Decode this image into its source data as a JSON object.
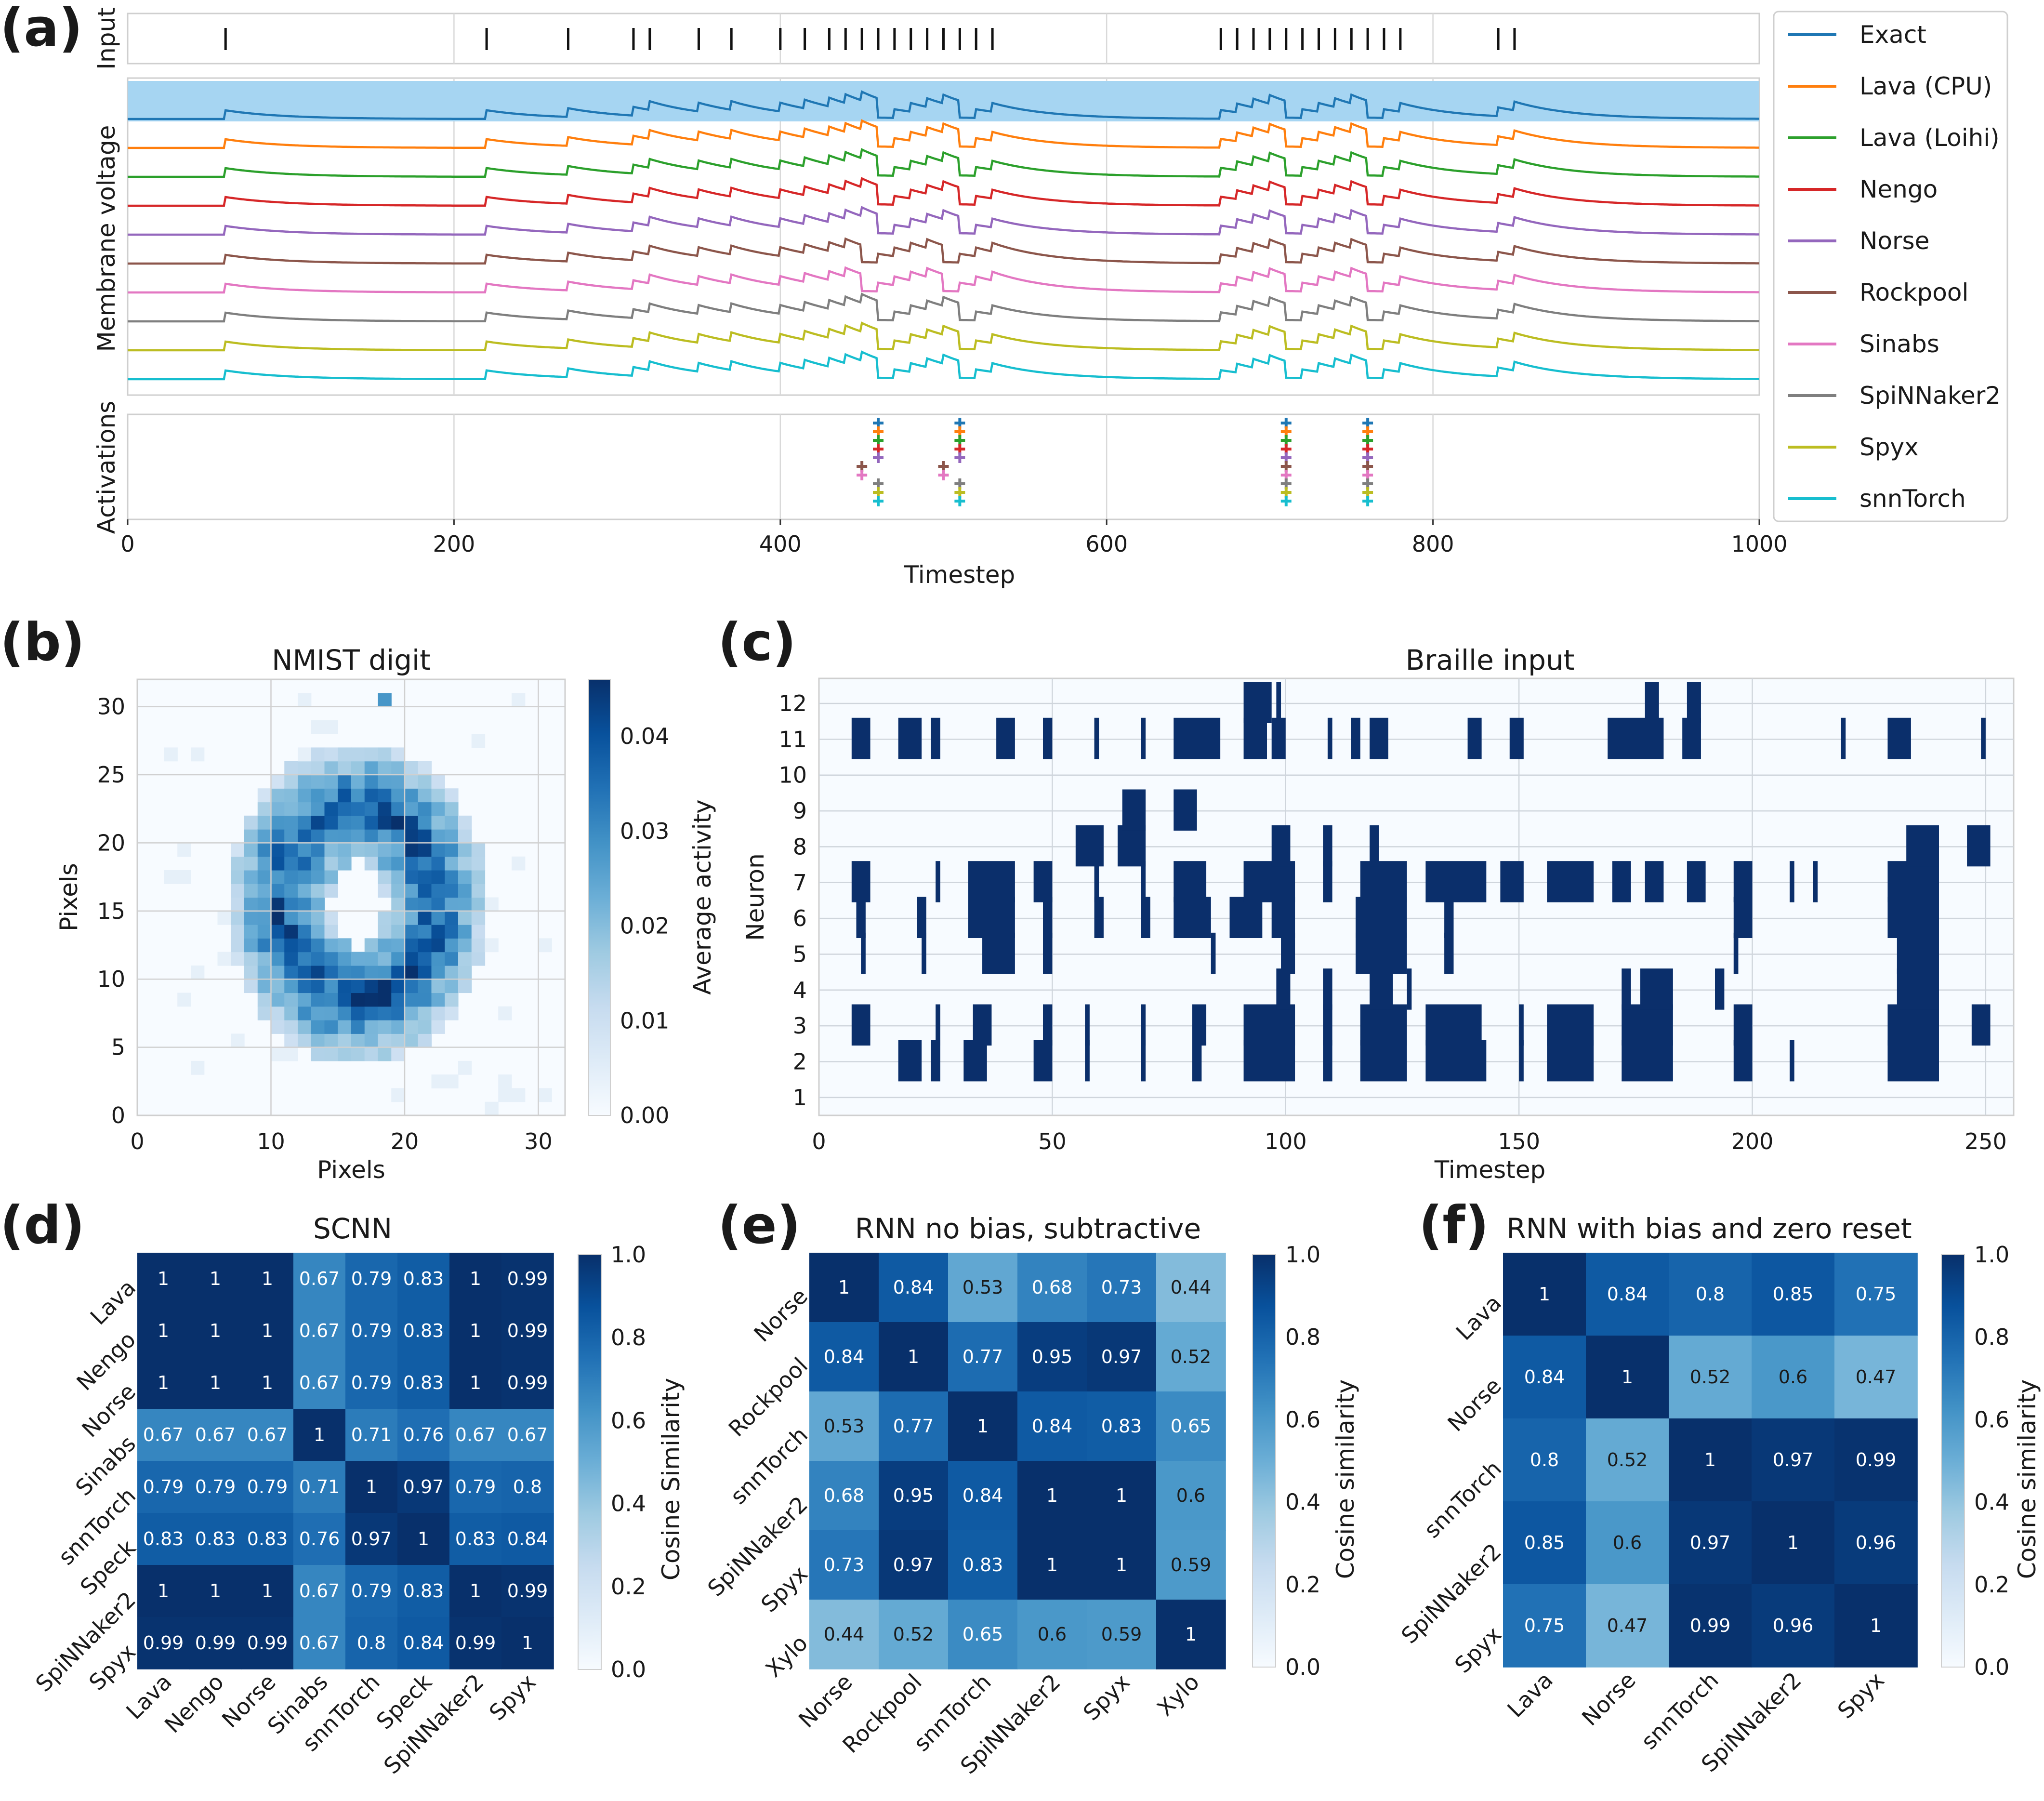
{
  "colors": {
    "Exact": "#1f77b4",
    "Lava (CPU)": "#ff7f0e",
    "Lava (Loihi)": "#2ca02c",
    "Nengo": "#d62728",
    "Norse": "#9467bd",
    "Rockpool": "#8c564b",
    "Sinabs": "#e377c2",
    "SpiNNaker2": "#7f7f7f",
    "Spyx": "#bcbd22",
    "snnTorch": "#17becf",
    "highlight": "#a6d5f2",
    "raster": "#0b2f6b"
  },
  "panel_labels": {
    "a": "(a)",
    "b": "(b)",
    "c": "(c)",
    "d": "(d)",
    "e": "(e)",
    "f": "(f)"
  },
  "chart_data": [
    {
      "id": "a",
      "type": "line",
      "xlabel": "Timestep",
      "x_ticks": [
        0,
        200,
        400,
        600,
        800,
        1000
      ],
      "xlim": [
        0,
        1000
      ],
      "input_label": "Input",
      "voltage_label": "Membrane voltage",
      "activations_label": "Activations",
      "input_spikes": [
        60,
        220,
        270,
        310,
        320,
        350,
        370,
        400,
        415,
        430,
        440,
        450,
        460,
        470,
        480,
        490,
        500,
        510,
        520,
        530,
        670,
        680,
        690,
        700,
        710,
        720,
        730,
        740,
        750,
        760,
        770,
        780,
        840,
        850
      ],
      "series": [
        "Exact",
        "Lava (CPU)",
        "Lava (Loihi)",
        "Nengo",
        "Norse",
        "Rockpool",
        "Sinabs",
        "SpiNNaker2",
        "Spyx",
        "snnTorch"
      ],
      "activations": {
        "Exact": [
          460,
          510,
          710,
          760
        ],
        "Lava (CPU)": [
          460,
          510,
          710,
          760
        ],
        "Lava (Loihi)": [
          460,
          510,
          710,
          760
        ],
        "Nengo": [
          460,
          510,
          710,
          760
        ],
        "Norse": [
          460,
          510,
          710,
          760
        ],
        "Rockpool": [
          450,
          500,
          710,
          760
        ],
        "Sinabs": [
          450,
          500,
          710,
          760
        ],
        "SpiNNaker2": [
          460,
          510,
          710,
          760
        ],
        "Spyx": [
          460,
          510,
          710,
          760
        ],
        "snnTorch": [
          460,
          510,
          710,
          760
        ]
      }
    },
    {
      "id": "b",
      "type": "heatmap",
      "title": "NMIST digit",
      "xlabel": "Pixels",
      "ylabel": "Pixels",
      "x_ticks": [
        0,
        10,
        20,
        30
      ],
      "y_ticks": [
        0,
        5,
        10,
        15,
        20,
        25,
        30
      ],
      "xlim": [
        0,
        32
      ],
      "ylim": [
        0,
        32
      ],
      "colorbar_label": "Average activity",
      "colorbar_ticks": [
        "0.00",
        "0.01",
        "0.02",
        "0.03",
        "0.04"
      ],
      "vmax": 0.046,
      "ring": {
        "cx": 16.5,
        "cy": 15.5,
        "rx_outer": 9.2,
        "ry_outer": 11.2,
        "rx_inner": 2.2,
        "ry_inner": 3.5,
        "peak": 0.04
      }
    },
    {
      "id": "c",
      "type": "scatter",
      "title": "Braille input",
      "xlabel": "Timestep",
      "ylabel": "Neuron",
      "x_ticks": [
        0,
        50,
        100,
        150,
        200,
        250
      ],
      "y_ticks": [
        1,
        2,
        3,
        4,
        5,
        6,
        7,
        8,
        9,
        10,
        11,
        12
      ],
      "xlim": [
        0,
        256
      ],
      "ylim": [
        0.5,
        12.7
      ],
      "events": {
        "12": [
          [
            91,
            97
          ],
          [
            98,
            99
          ],
          [
            177,
            180
          ],
          [
            186,
            189
          ]
        ],
        "11": [
          [
            7,
            11
          ],
          [
            17,
            22
          ],
          [
            24,
            26
          ],
          [
            38,
            42
          ],
          [
            48,
            50
          ],
          [
            59,
            60
          ],
          [
            69,
            70
          ],
          [
            76,
            86
          ],
          [
            91,
            96
          ],
          [
            97,
            100
          ],
          [
            109,
            110
          ],
          [
            114,
            116
          ],
          [
            118,
            122
          ],
          [
            139,
            142
          ],
          [
            148,
            151
          ],
          [
            169,
            181
          ],
          [
            185,
            189
          ],
          [
            219,
            220
          ],
          [
            229,
            234
          ],
          [
            249,
            250
          ]
        ],
        "9": [
          [
            65,
            70
          ],
          [
            76,
            81
          ]
        ],
        "8": [
          [
            55,
            61
          ],
          [
            64,
            70
          ],
          [
            97,
            101
          ],
          [
            108,
            110
          ],
          [
            118,
            120
          ],
          [
            233,
            240
          ],
          [
            246,
            251
          ]
        ],
        "7": [
          [
            7,
            11
          ],
          [
            25,
            26
          ],
          [
            32,
            42
          ],
          [
            46,
            50
          ],
          [
            59,
            60
          ],
          [
            69,
            70
          ],
          [
            76,
            83
          ],
          [
            91,
            102
          ],
          [
            108,
            110
          ],
          [
            116,
            126
          ],
          [
            130,
            143
          ],
          [
            146,
            151
          ],
          [
            156,
            166
          ],
          [
            170,
            174
          ],
          [
            177,
            181
          ],
          [
            186,
            190
          ],
          [
            196,
            200
          ],
          [
            208,
            209
          ],
          [
            213,
            214
          ],
          [
            229,
            240
          ]
        ],
        "6": [
          [
            8,
            10
          ],
          [
            21,
            23
          ],
          [
            32,
            42
          ],
          [
            48,
            50
          ],
          [
            59,
            61
          ],
          [
            69,
            71
          ],
          [
            76,
            84
          ],
          [
            88,
            95
          ],
          [
            97,
            102
          ],
          [
            115,
            126
          ],
          [
            134,
            136
          ],
          [
            196,
            200
          ],
          [
            229,
            240
          ]
        ],
        "5": [
          [
            9,
            10
          ],
          [
            22,
            23
          ],
          [
            35,
            42
          ],
          [
            48,
            50
          ],
          [
            84,
            85
          ],
          [
            99,
            102
          ],
          [
            115,
            126
          ],
          [
            134,
            136
          ],
          [
            196,
            197
          ],
          [
            231,
            240
          ]
        ],
        "4": [
          [
            98,
            101
          ],
          [
            108,
            110
          ],
          [
            118,
            123
          ],
          [
            126,
            127
          ],
          [
            172,
            174
          ],
          [
            176,
            183
          ],
          [
            192,
            194
          ],
          [
            231,
            240
          ]
        ],
        "3": [
          [
            7,
            11
          ],
          [
            25,
            26
          ],
          [
            33,
            37
          ],
          [
            48,
            50
          ],
          [
            57,
            58
          ],
          [
            69,
            70
          ],
          [
            80,
            83
          ],
          [
            91,
            102
          ],
          [
            108,
            110
          ],
          [
            116,
            126
          ],
          [
            130,
            142
          ],
          [
            150,
            151
          ],
          [
            156,
            166
          ],
          [
            172,
            183
          ],
          [
            196,
            200
          ],
          [
            229,
            240
          ],
          [
            247,
            251
          ]
        ],
        "2": [
          [
            17,
            22
          ],
          [
            24,
            26
          ],
          [
            31,
            36
          ],
          [
            46,
            50
          ],
          [
            57,
            58
          ],
          [
            69,
            70
          ],
          [
            80,
            82
          ],
          [
            91,
            102
          ],
          [
            108,
            110
          ],
          [
            116,
            126
          ],
          [
            130,
            143
          ],
          [
            150,
            151
          ],
          [
            156,
            166
          ],
          [
            172,
            183
          ],
          [
            196,
            200
          ],
          [
            208,
            209
          ],
          [
            229,
            240
          ]
        ]
      }
    },
    {
      "id": "d",
      "type": "heatmap",
      "title": "SCNN",
      "labels": [
        "Lava",
        "Nengo",
        "Norse",
        "Sinabs",
        "snnTorch",
        "Speck",
        "SpiNNaker2",
        "Spyx"
      ],
      "colorbar_label": "Cosine Similarity",
      "colorbar_ticks": [
        "0.0",
        "0.2",
        "0.4",
        "0.6",
        "0.8",
        "1.0"
      ],
      "matrix": [
        [
          1,
          1,
          1,
          0.67,
          0.79,
          0.83,
          1,
          0.99
        ],
        [
          1,
          1,
          1,
          0.67,
          0.79,
          0.83,
          1,
          0.99
        ],
        [
          1,
          1,
          1,
          0.67,
          0.79,
          0.83,
          1,
          0.99
        ],
        [
          0.67,
          0.67,
          0.67,
          1,
          0.71,
          0.76,
          0.67,
          0.67
        ],
        [
          0.79,
          0.79,
          0.79,
          0.71,
          1,
          0.97,
          0.79,
          0.8
        ],
        [
          0.83,
          0.83,
          0.83,
          0.76,
          0.97,
          1,
          0.83,
          0.84
        ],
        [
          1,
          1,
          1,
          0.67,
          0.79,
          0.83,
          1,
          0.99
        ],
        [
          0.99,
          0.99,
          0.99,
          0.67,
          0.8,
          0.84,
          0.99,
          1
        ]
      ]
    },
    {
      "id": "e",
      "type": "heatmap",
      "title": "RNN no bias, subtractive",
      "labels": [
        "Norse",
        "Rockpool",
        "snnTorch",
        "SpiNNaker2",
        "Spyx",
        "Xylo"
      ],
      "colorbar_label": "Cosine similarity",
      "colorbar_ticks": [
        "0.0",
        "0.2",
        "0.4",
        "0.6",
        "0.8",
        "1.0"
      ],
      "matrix": [
        [
          1,
          0.84,
          0.53,
          0.68,
          0.73,
          0.44
        ],
        [
          0.84,
          1,
          0.77,
          0.95,
          0.97,
          0.52
        ],
        [
          0.53,
          0.77,
          1,
          0.84,
          0.83,
          0.65
        ],
        [
          0.68,
          0.95,
          0.84,
          1,
          1,
          0.6
        ],
        [
          0.73,
          0.97,
          0.83,
          1,
          1,
          0.59
        ],
        [
          0.44,
          0.52,
          0.65,
          0.6,
          0.59,
          1
        ]
      ]
    },
    {
      "id": "f",
      "type": "heatmap",
      "title": "RNN with bias and zero reset",
      "labels": [
        "Lava",
        "Norse",
        "snnTorch",
        "SpiNNaker2",
        "Spyx"
      ],
      "colorbar_label": "Cosine similarity",
      "colorbar_ticks": [
        "0.0",
        "0.2",
        "0.4",
        "0.6",
        "0.8",
        "1.0"
      ],
      "matrix": [
        [
          1,
          0.84,
          0.8,
          0.85,
          0.75
        ],
        [
          0.84,
          1,
          0.52,
          0.6,
          0.47
        ],
        [
          0.8,
          0.52,
          1,
          0.97,
          0.99
        ],
        [
          0.85,
          0.6,
          0.97,
          1,
          0.96
        ],
        [
          0.75,
          0.47,
          0.99,
          0.96,
          1
        ]
      ]
    }
  ]
}
